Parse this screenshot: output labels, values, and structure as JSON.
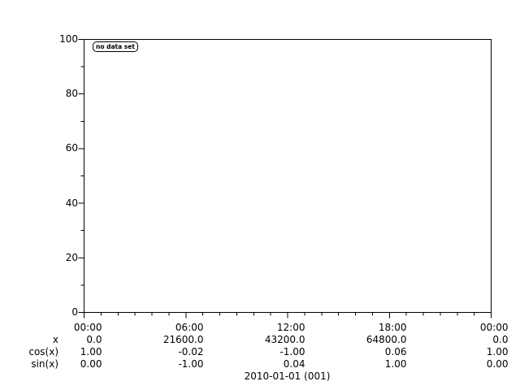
{
  "window": {
    "background_color": "#ffffff",
    "foreground_color": "#000000"
  },
  "chart_data": {
    "type": "line",
    "title": "",
    "series": [],
    "grid": false,
    "legend": {
      "label": "no data set",
      "position": "top-left"
    },
    "y_axis": {
      "tick_labels": [
        "100",
        "80",
        "60",
        "40",
        "20",
        "0"
      ],
      "range": [
        0,
        100
      ],
      "minor_divisions_per_major": 2
    },
    "x_axis": {
      "tick_labels": [
        "00:00",
        "06:00",
        "12:00",
        "18:00",
        "00:00"
      ],
      "minor_divisions_per_major": 6
    },
    "footer_table": {
      "rows": [
        {
          "label": "x",
          "values": [
            "0.0",
            "21600.0",
            "43200.0",
            "64800.0",
            "0.0"
          ]
        },
        {
          "label": "cos(x)",
          "values": [
            "1.00",
            "-0.02",
            "-1.00",
            "0.06",
            "1.00"
          ]
        },
        {
          "label": "sin(x)",
          "values": [
            "0.00",
            "-1.00",
            "0.04",
            "1.00",
            "0.00"
          ]
        }
      ]
    },
    "caption": "2010-01-01 (001)"
  }
}
